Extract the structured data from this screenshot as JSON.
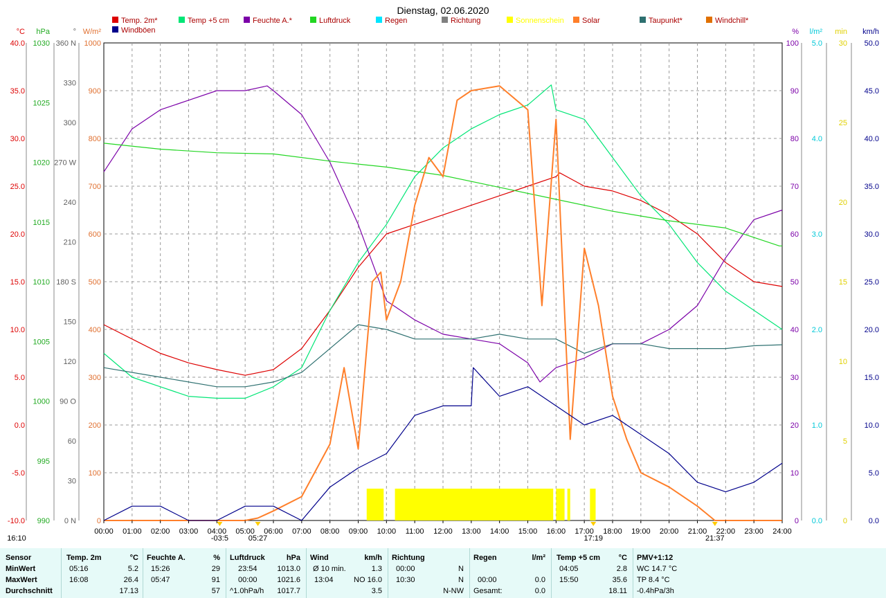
{
  "title": "Dienstag, 02.06.2020",
  "legend": [
    {
      "label": "Temp. 2m*",
      "color": "#dd0000"
    },
    {
      "label": "Temp +5 cm",
      "color": "#00e676"
    },
    {
      "label": "Feuchte A.*",
      "color": "#7b00a8"
    },
    {
      "label": "Luftdruck",
      "color": "#22d622"
    },
    {
      "label": "Regen",
      "color": "#00e5ff"
    },
    {
      "label": "Richtung",
      "color": "#808080"
    },
    {
      "label": "Sonnenschein",
      "color": "#ffff00"
    },
    {
      "label": "Solar",
      "color": "#ff7f2a"
    },
    {
      "label": "Taupunkt*",
      "color": "#2e7070"
    },
    {
      "label": "Windchill*",
      "color": "#e07000"
    },
    {
      "label": "Windböen",
      "color": "#00008b"
    }
  ],
  "axes": {
    "temp": {
      "unit": "°C",
      "color": "#dd0000",
      "ticks": [
        "40.0",
        "35.0",
        "30.0",
        "25.0",
        "20.0",
        "15.0",
        "10.0",
        "5.0",
        "0.0",
        "-5.0",
        "-10.0"
      ]
    },
    "pressure": {
      "unit": "hPa",
      "color": "#22aa22",
      "ticks": [
        "1030",
        "1025",
        "1020",
        "1015",
        "1010",
        "1005",
        "1000",
        "995",
        "990"
      ]
    },
    "direction": {
      "unit": "°",
      "color": "#606060",
      "ticks": [
        "360 N",
        "330",
        "300",
        "270 W",
        "240",
        "210",
        "180 S",
        "150",
        "120",
        "90 O",
        "60",
        "30",
        "0 N"
      ]
    },
    "solar": {
      "unit": "W/m²",
      "color": "#e07030",
      "ticks": [
        "1000",
        "900",
        "800",
        "700",
        "600",
        "500",
        "400",
        "300",
        "200",
        "100",
        "0"
      ]
    },
    "humidity": {
      "unit": "%",
      "color": "#7b00a8",
      "ticks": [
        "100",
        "90",
        "80",
        "70",
        "60",
        "50",
        "40",
        "30",
        "20",
        "10",
        "0"
      ]
    },
    "rain": {
      "unit": "l/m²",
      "color": "#00c8d8",
      "ticks": [
        "5.0",
        "4.0",
        "3.0",
        "2.0",
        "1.0",
        "0.0"
      ]
    },
    "sun": {
      "unit": "min",
      "color": "#e0d000",
      "ticks": [
        "30",
        "25",
        "20",
        "15",
        "10",
        "5",
        "0"
      ]
    },
    "wind": {
      "unit": "km/h",
      "color": "#00008b",
      "ticks": [
        "50.0",
        "45.0",
        "40.0",
        "35.0",
        "30.0",
        "25.0",
        "20.0",
        "15.0",
        "10.0",
        "5.0",
        "0.0"
      ]
    },
    "time": {
      "ticks": [
        "00:00",
        "01:00",
        "02:00",
        "03:00",
        "04:00",
        "05:00",
        "06:00",
        "07:00",
        "08:00",
        "09:00",
        "10:00",
        "11:00",
        "12:00",
        "13:00",
        "14:00",
        "15:00",
        "16:00",
        "17:00",
        "18:00",
        "19:00",
        "20:00",
        "21:00",
        "22:00",
        "23:00",
        "24:00"
      ]
    }
  },
  "markers": [
    {
      "label": "16:10",
      "hour": -3
    },
    {
      "label": "05:27",
      "hour": 5.45
    },
    {
      "label": "17:19",
      "hour": 17.32
    },
    {
      "label": "21:37",
      "hour": 21.62
    },
    {
      "label": "-03:5",
      "hour": 4.1
    }
  ],
  "chart_data": {
    "type": "line",
    "title": "Dienstag, 02.06.2020",
    "x_unit": "hour",
    "series": [
      {
        "name": "Temp. 2m*",
        "axis": "temp",
        "points": [
          [
            0,
            10.5
          ],
          [
            1,
            9.0
          ],
          [
            2,
            7.5
          ],
          [
            3,
            6.5
          ],
          [
            4,
            5.8
          ],
          [
            5,
            5.2
          ],
          [
            6,
            5.8
          ],
          [
            7,
            8.0
          ],
          [
            8,
            12.0
          ],
          [
            9,
            16.5
          ],
          [
            10,
            20.0
          ],
          [
            11,
            21.0
          ],
          [
            12,
            22.0
          ],
          [
            13,
            23.0
          ],
          [
            14,
            24.0
          ],
          [
            15,
            25.0
          ],
          [
            16,
            26.0
          ],
          [
            16.13,
            26.4
          ],
          [
            17,
            25.0
          ],
          [
            18,
            24.5
          ],
          [
            19,
            23.5
          ],
          [
            20,
            22.0
          ],
          [
            21,
            20.0
          ],
          [
            22,
            17.0
          ],
          [
            23,
            15.0
          ],
          [
            24,
            14.5
          ]
        ]
      },
      {
        "name": "Temp +5 cm",
        "axis": "temp",
        "points": [
          [
            0,
            7.5
          ],
          [
            1,
            5.0
          ],
          [
            2,
            4.0
          ],
          [
            3,
            3.0
          ],
          [
            4,
            2.8
          ],
          [
            5,
            2.8
          ],
          [
            6,
            4.0
          ],
          [
            7,
            6.0
          ],
          [
            8,
            12.0
          ],
          [
            9,
            17.0
          ],
          [
            10,
            21.0
          ],
          [
            11,
            26.0
          ],
          [
            12,
            29.0
          ],
          [
            13,
            31.0
          ],
          [
            14,
            32.5
          ],
          [
            15,
            33.5
          ],
          [
            15.83,
            35.6
          ],
          [
            16,
            33.0
          ],
          [
            17,
            32.0
          ],
          [
            18,
            28.0
          ],
          [
            19,
            24.0
          ],
          [
            20,
            21.0
          ],
          [
            21,
            17.0
          ],
          [
            22,
            14.0
          ],
          [
            23,
            12.0
          ],
          [
            24,
            10.0
          ]
        ]
      },
      {
        "name": "Feuchte A.*",
        "axis": "humidity",
        "points": [
          [
            0,
            73
          ],
          [
            1,
            82
          ],
          [
            2,
            86
          ],
          [
            3,
            88
          ],
          [
            4,
            90
          ],
          [
            5,
            90
          ],
          [
            5.78,
            91
          ],
          [
            6,
            90
          ],
          [
            7,
            85
          ],
          [
            8,
            75
          ],
          [
            9,
            62
          ],
          [
            10,
            46
          ],
          [
            11,
            42
          ],
          [
            12,
            39
          ],
          [
            13,
            38
          ],
          [
            14,
            37
          ],
          [
            15,
            33
          ],
          [
            15.43,
            29
          ],
          [
            16,
            32
          ],
          [
            17,
            34
          ],
          [
            18,
            37
          ],
          [
            19,
            37
          ],
          [
            20,
            40
          ],
          [
            21,
            45
          ],
          [
            22,
            55
          ],
          [
            23,
            63
          ],
          [
            24,
            65
          ]
        ]
      },
      {
        "name": "Luftdruck",
        "axis": "pressure",
        "points": [
          [
            0,
            1021.6
          ],
          [
            2,
            1021.1
          ],
          [
            4,
            1020.8
          ],
          [
            6,
            1020.7
          ],
          [
            8,
            1020.1
          ],
          [
            10,
            1019.6
          ],
          [
            12,
            1018.9
          ],
          [
            14,
            1017.9
          ],
          [
            16,
            1016.9
          ],
          [
            18,
            1015.9
          ],
          [
            20,
            1015.1
          ],
          [
            22,
            1014.5
          ],
          [
            23.9,
            1013.0
          ],
          [
            24,
            1013.0
          ]
        ]
      },
      {
        "name": "Taupunkt*",
        "axis": "temp",
        "points": [
          [
            0,
            6.0
          ],
          [
            2,
            5.0
          ],
          [
            4,
            4.0
          ],
          [
            5,
            4.0
          ],
          [
            6,
            4.5
          ],
          [
            7,
            5.5
          ],
          [
            8,
            8.0
          ],
          [
            9,
            10.5
          ],
          [
            10,
            10.0
          ],
          [
            11,
            9.0
          ],
          [
            12,
            9.0
          ],
          [
            13,
            9.0
          ],
          [
            14,
            9.5
          ],
          [
            15,
            9.0
          ],
          [
            16,
            9.0
          ],
          [
            17,
            7.5
          ],
          [
            18,
            8.5
          ],
          [
            19,
            8.5
          ],
          [
            20,
            8.0
          ],
          [
            21,
            8.0
          ],
          [
            22,
            8.0
          ],
          [
            23,
            8.3
          ],
          [
            24,
            8.4
          ]
        ]
      },
      {
        "name": "Solar",
        "axis": "solar",
        "points": [
          [
            0,
            0
          ],
          [
            5,
            0
          ],
          [
            5.45,
            5
          ],
          [
            6,
            20
          ],
          [
            7,
            50
          ],
          [
            8,
            160
          ],
          [
            8.5,
            320
          ],
          [
            9,
            150
          ],
          [
            9.5,
            500
          ],
          [
            9.8,
            520
          ],
          [
            10,
            420
          ],
          [
            10.5,
            500
          ],
          [
            11,
            660
          ],
          [
            11.5,
            760
          ],
          [
            12,
            720
          ],
          [
            12.5,
            880
          ],
          [
            13,
            900
          ],
          [
            14,
            910
          ],
          [
            15,
            860
          ],
          [
            15.5,
            450
          ],
          [
            16,
            840
          ],
          [
            16.5,
            170
          ],
          [
            17,
            570
          ],
          [
            17.5,
            450
          ],
          [
            18,
            260
          ],
          [
            18.5,
            170
          ],
          [
            19,
            100
          ],
          [
            20,
            70
          ],
          [
            21,
            30
          ],
          [
            21.62,
            0
          ],
          [
            24,
            0
          ]
        ]
      },
      {
        "name": "Windböen",
        "axis": "wind",
        "points": [
          [
            0,
            0
          ],
          [
            1,
            1.5
          ],
          [
            2,
            1.5
          ],
          [
            3,
            0
          ],
          [
            4,
            0
          ],
          [
            5,
            1.5
          ],
          [
            6,
            1.5
          ],
          [
            7,
            0
          ],
          [
            8,
            3.5
          ],
          [
            9,
            5.5
          ],
          [
            10,
            7
          ],
          [
            11,
            11
          ],
          [
            12,
            12
          ],
          [
            13,
            12
          ],
          [
            13.07,
            16.0
          ],
          [
            14,
            13
          ],
          [
            15,
            14
          ],
          [
            16,
            12
          ],
          [
            17,
            10
          ],
          [
            18,
            11
          ],
          [
            19,
            9
          ],
          [
            20,
            7
          ],
          [
            21,
            4
          ],
          [
            22,
            3
          ],
          [
            23,
            4
          ],
          [
            24,
            6
          ]
        ]
      }
    ],
    "sunshine_blocks": [
      [
        9.3,
        9.9
      ],
      [
        10.3,
        15.9
      ],
      [
        16.0,
        16.3
      ],
      [
        16.4,
        16.5
      ],
      [
        17.2,
        17.4
      ]
    ]
  },
  "table": {
    "headers": {
      "sensor": "Sensor",
      "temp": "Temp. 2m",
      "temp_u": "°C",
      "hum": "Feuchte A.",
      "hum_u": "%",
      "press": "Luftdruck",
      "press_u": "hPa",
      "wind": "Wind",
      "wind_u": "km/h",
      "dir": "Richtung",
      "rain": "Regen",
      "rain_u": "l/m²",
      "t5": "Temp +5 cm",
      "t5_u": "°C",
      "pmv": "PMV+1:12"
    },
    "rows": [
      {
        "label": "MinWert",
        "temp_t": "05:16",
        "temp_v": "5.2",
        "hum_t": "15:26",
        "hum_v": "29",
        "press_t": "23:54",
        "press_v": "1013.0",
        "wind_t": "Ø 10 min.",
        "wind_v": "1.3",
        "dir_t": "00:00",
        "dir_v": "N",
        "rain_t": "",
        "rain_v": "",
        "t5_t": "04:05",
        "t5_v": "2.8",
        "pmv": "WC 14.7 °C"
      },
      {
        "label": "MaxWert",
        "temp_t": "16:08",
        "temp_v": "26.4",
        "hum_t": "05:47",
        "hum_v": "91",
        "press_t": "00:00",
        "press_v": "1021.6",
        "wind_t": "13:04",
        "wind_v": "NO 16.0",
        "dir_t": "10:30",
        "dir_v": "N",
        "rain_t": "00:00",
        "rain_v": "0.0",
        "t5_t": "15:50",
        "t5_v": "35.6",
        "pmv": "TP 8.4 °C"
      },
      {
        "label": "Durchschnitt",
        "temp_t": "",
        "temp_v": "17.13",
        "hum_t": "",
        "hum_v": "57",
        "press_t": "^1.0hPa/h",
        "press_v": "1017.7",
        "wind_t": "",
        "wind_v": "3.5",
        "dir_t": "",
        "dir_v": "N-NW",
        "rain_t": "Gesamt:",
        "rain_v": "0.0",
        "t5_t": "",
        "t5_v": "18.11",
        "pmv": "-0.4hPa/3h"
      }
    ]
  }
}
